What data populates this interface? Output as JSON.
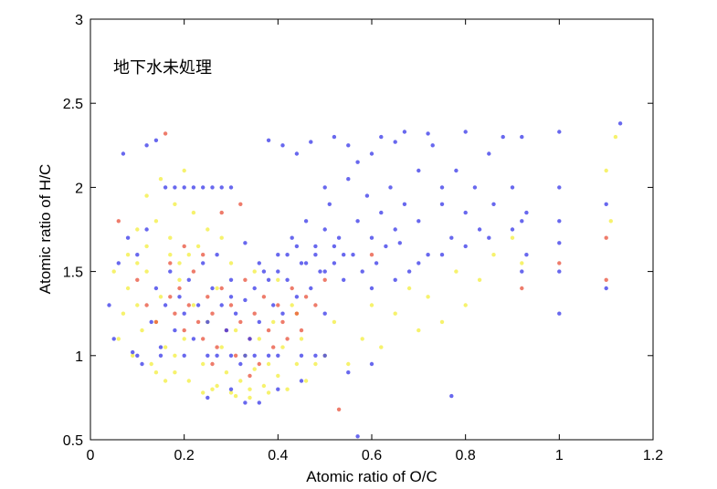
{
  "chart_data": {
    "type": "scatter",
    "annotation": "地下水未処理",
    "xlabel": "Atomic ratio of O/C",
    "ylabel": "Atomic ratio of H/C",
    "xlim": [
      0,
      1.2
    ],
    "ylim": [
      0.5,
      3
    ],
    "xticks": [
      "0",
      "0.2",
      "0.4",
      "0.6",
      "0.8",
      "1",
      "1.2"
    ],
    "yticks": [
      "0.5",
      "1",
      "1.5",
      "2",
      "2.5",
      "3"
    ],
    "grid": false,
    "legend": "none",
    "colors": {
      "blue": "#3535e8",
      "red": "#e8503a",
      "yellow": "#f3ee3c"
    },
    "series": [
      {
        "color": "yellow",
        "points": [
          [
            0.06,
            1.1
          ],
          [
            0.07,
            1.25
          ],
          [
            0.08,
            1.4
          ],
          [
            0.09,
            1.0
          ],
          [
            0.1,
            1.3
          ],
          [
            0.11,
            1.15
          ],
          [
            0.12,
            1.5
          ],
          [
            0.13,
            0.95
          ],
          [
            0.14,
            1.2
          ],
          [
            0.15,
            1.35
          ],
          [
            0.16,
            1.05
          ],
          [
            0.17,
            1.6
          ],
          [
            0.18,
            0.9
          ],
          [
            0.19,
            1.45
          ],
          [
            0.2,
            1.1
          ],
          [
            0.21,
            0.85
          ],
          [
            0.22,
            1.3
          ],
          [
            0.23,
            1.65
          ],
          [
            0.24,
            0.95
          ],
          [
            0.25,
            1.2
          ],
          [
            0.26,
            0.8
          ],
          [
            0.27,
            1.4
          ],
          [
            0.28,
            1.05
          ],
          [
            0.29,
            0.9
          ],
          [
            0.3,
            0.78
          ],
          [
            0.31,
            1.15
          ],
          [
            0.32,
            0.85
          ],
          [
            0.33,
            1.0
          ],
          [
            0.34,
            0.75
          ],
          [
            0.35,
            0.92
          ],
          [
            0.36,
            1.1
          ],
          [
            0.37,
            0.82
          ],
          [
            0.38,
            0.95
          ],
          [
            0.39,
            1.2
          ],
          [
            0.4,
            0.88
          ],
          [
            0.41,
            1.05
          ],
          [
            0.42,
            0.8
          ],
          [
            0.43,
            1.3
          ],
          [
            0.44,
            0.95
          ],
          [
            0.45,
            1.1
          ],
          [
            0.12,
            1.95
          ],
          [
            0.15,
            2.05
          ],
          [
            0.18,
            1.9
          ],
          [
            0.2,
            2.1
          ],
          [
            0.22,
            1.85
          ],
          [
            0.25,
            1.75
          ],
          [
            0.28,
            1.7
          ],
          [
            0.1,
            1.75
          ],
          [
            0.08,
            1.6
          ],
          [
            0.05,
            1.5
          ],
          [
            0.5,
            1.0
          ],
          [
            0.52,
            1.2
          ],
          [
            0.55,
            0.95
          ],
          [
            0.58,
            1.1
          ],
          [
            0.6,
            1.3
          ],
          [
            0.62,
            1.05
          ],
          [
            0.65,
            1.25
          ],
          [
            0.68,
            1.4
          ],
          [
            0.7,
            1.15
          ],
          [
            0.72,
            1.35
          ],
          [
            0.75,
            1.2
          ],
          [
            0.78,
            1.5
          ],
          [
            0.8,
            1.3
          ],
          [
            0.83,
            1.45
          ],
          [
            0.86,
            1.6
          ],
          [
            0.9,
            1.7
          ],
          [
            0.92,
            1.55
          ],
          [
            1.1,
            2.1
          ],
          [
            1.11,
            1.8
          ],
          [
            1.12,
            2.3
          ],
          [
            0.14,
            0.9
          ],
          [
            0.16,
            0.85
          ],
          [
            0.18,
            1.0
          ],
          [
            0.24,
            0.78
          ],
          [
            0.27,
            0.82
          ],
          [
            0.31,
            0.76
          ],
          [
            0.34,
            0.8
          ],
          [
            0.38,
            0.78
          ],
          [
            0.46,
            0.85
          ],
          [
            0.48,
            0.95
          ],
          [
            0.1,
            1.55
          ],
          [
            0.12,
            1.65
          ],
          [
            0.14,
            1.8
          ],
          [
            0.17,
            1.7
          ],
          [
            0.19,
            1.55
          ],
          [
            0.21,
            1.6
          ],
          [
            0.3,
            1.55
          ],
          [
            0.35,
            1.5
          ],
          [
            0.4,
            1.45
          ],
          [
            0.44,
            1.25
          ]
        ]
      },
      {
        "color": "red",
        "points": [
          [
            0.06,
            1.8
          ],
          [
            0.1,
            1.45
          ],
          [
            0.12,
            1.3
          ],
          [
            0.14,
            1.2
          ],
          [
            0.16,
            2.32
          ],
          [
            0.17,
            1.35
          ],
          [
            0.18,
            1.25
          ],
          [
            0.19,
            1.4
          ],
          [
            0.2,
            1.15
          ],
          [
            0.21,
            1.3
          ],
          [
            0.22,
            1.5
          ],
          [
            0.23,
            1.2
          ],
          [
            0.24,
            1.1
          ],
          [
            0.25,
            1.35
          ],
          [
            0.26,
            1.25
          ],
          [
            0.27,
            1.05
          ],
          [
            0.28,
            1.4
          ],
          [
            0.29,
            1.15
          ],
          [
            0.3,
            1.3
          ],
          [
            0.31,
            1.0
          ],
          [
            0.32,
            1.2
          ],
          [
            0.33,
            1.45
          ],
          [
            0.34,
            1.1
          ],
          [
            0.35,
            1.25
          ],
          [
            0.36,
            0.95
          ],
          [
            0.37,
            1.35
          ],
          [
            0.38,
            1.15
          ],
          [
            0.39,
            1.05
          ],
          [
            0.4,
            1.3
          ],
          [
            0.41,
            1.2
          ],
          [
            0.42,
            1.1
          ],
          [
            0.43,
            1.4
          ],
          [
            0.44,
            1.25
          ],
          [
            0.45,
            1.15
          ],
          [
            0.46,
            1.35
          ],
          [
            0.48,
            1.3
          ],
          [
            0.5,
            1.45
          ],
          [
            0.32,
            1.9
          ],
          [
            0.28,
            1.85
          ],
          [
            0.24,
            1.6
          ],
          [
            0.2,
            1.65
          ],
          [
            0.17,
            1.55
          ],
          [
            0.53,
            0.68
          ],
          [
            0.6,
            1.6
          ],
          [
            0.92,
            1.4
          ],
          [
            1.0,
            1.55
          ],
          [
            1.1,
            1.7
          ],
          [
            1.1,
            1.45
          ],
          [
            0.34,
            0.88
          ],
          [
            0.26,
            0.95
          ]
        ]
      },
      {
        "color": "blue",
        "points": [
          [
            0.04,
            1.3
          ],
          [
            0.05,
            1.1
          ],
          [
            0.06,
            1.55
          ],
          [
            0.07,
            2.2
          ],
          [
            0.08,
            1.7
          ],
          [
            0.09,
            1.02
          ],
          [
            0.1,
            1.6
          ],
          [
            0.11,
            0.95
          ],
          [
            0.12,
            1.75
          ],
          [
            0.13,
            1.2
          ],
          [
            0.14,
            1.4
          ],
          [
            0.15,
            1.05
          ],
          [
            0.16,
            1.3
          ],
          [
            0.17,
            1.5
          ],
          [
            0.18,
            1.15
          ],
          [
            0.19,
            1.35
          ],
          [
            0.2,
            1.25
          ],
          [
            0.21,
            1.45
          ],
          [
            0.22,
            1.1
          ],
          [
            0.23,
            1.3
          ],
          [
            0.24,
            1.55
          ],
          [
            0.25,
            1.2
          ],
          [
            0.26,
            1.4
          ],
          [
            0.27,
            1.0
          ],
          [
            0.28,
            1.3
          ],
          [
            0.29,
            1.15
          ],
          [
            0.3,
            1.35
          ],
          [
            0.31,
            1.25
          ],
          [
            0.32,
            0.95
          ],
          [
            0.33,
            1.33
          ],
          [
            0.33,
            1.0
          ],
          [
            0.33,
            1.67
          ],
          [
            0.34,
            1.1
          ],
          [
            0.35,
            1.4
          ],
          [
            0.36,
            1.2
          ],
          [
            0.37,
            1.5
          ],
          [
            0.38,
            1.0
          ],
          [
            0.39,
            1.3
          ],
          [
            0.4,
            1.6
          ],
          [
            0.41,
            1.25
          ],
          [
            0.42,
            1.45
          ],
          [
            0.43,
            1.7
          ],
          [
            0.44,
            1.35
          ],
          [
            0.45,
            1.55
          ],
          [
            0.46,
            1.8
          ],
          [
            0.47,
            1.4
          ],
          [
            0.48,
            1.65
          ],
          [
            0.49,
            1.5
          ],
          [
            0.5,
            1.5
          ],
          [
            0.5,
            2.0
          ],
          [
            0.5,
            1.0
          ],
          [
            0.5,
            1.75
          ],
          [
            0.5,
            1.25
          ],
          [
            0.51,
            1.9
          ],
          [
            0.52,
            1.55
          ],
          [
            0.53,
            1.7
          ],
          [
            0.54,
            1.45
          ],
          [
            0.55,
            2.05
          ],
          [
            0.56,
            1.6
          ],
          [
            0.57,
            1.8
          ],
          [
            0.58,
            1.5
          ],
          [
            0.59,
            1.95
          ],
          [
            0.6,
            1.7
          ],
          [
            0.6,
            2.2
          ],
          [
            0.61,
            1.55
          ],
          [
            0.62,
            1.85
          ],
          [
            0.63,
            1.65
          ],
          [
            0.64,
            2.0
          ],
          [
            0.65,
            1.75
          ],
          [
            0.66,
            1.67
          ],
          [
            0.67,
            1.9
          ],
          [
            0.67,
            2.33
          ],
          [
            0.68,
            1.5
          ],
          [
            0.7,
            2.1
          ],
          [
            0.7,
            1.8
          ],
          [
            0.72,
            1.6
          ],
          [
            0.73,
            2.25
          ],
          [
            0.75,
            1.9
          ],
          [
            0.75,
            2.0
          ],
          [
            0.77,
            1.7
          ],
          [
            0.78,
            2.1
          ],
          [
            0.8,
            1.85
          ],
          [
            0.8,
            2.33
          ],
          [
            0.82,
            2.0
          ],
          [
            0.83,
            1.75
          ],
          [
            0.85,
            2.2
          ],
          [
            0.86,
            1.9
          ],
          [
            0.88,
            2.3
          ],
          [
            0.9,
            2.0
          ],
          [
            0.92,
            2.3
          ],
          [
            0.92,
            1.8
          ],
          [
            1.0,
            2.33
          ],
          [
            1.0,
            2.0
          ],
          [
            1.0,
            1.67
          ],
          [
            1.0,
            1.5
          ],
          [
            1.0,
            1.25
          ],
          [
            1.0,
            1.8
          ],
          [
            1.1,
            1.9
          ],
          [
            1.1,
            1.4
          ],
          [
            1.13,
            2.38
          ],
          [
            0.38,
            2.28
          ],
          [
            0.41,
            2.25
          ],
          [
            0.44,
            2.2
          ],
          [
            0.47,
            2.27
          ],
          [
            0.52,
            2.3
          ],
          [
            0.55,
            2.25
          ],
          [
            0.62,
            2.3
          ],
          [
            0.57,
            2.15
          ],
          [
            0.65,
            2.27
          ],
          [
            0.72,
            2.32
          ],
          [
            0.12,
            2.25
          ],
          [
            0.14,
            2.28
          ],
          [
            0.16,
            2.0
          ],
          [
            0.18,
            2.0
          ],
          [
            0.2,
            2.0
          ],
          [
            0.22,
            2.0
          ],
          [
            0.24,
            2.0
          ],
          [
            0.26,
            2.0
          ],
          [
            0.28,
            2.0
          ],
          [
            0.3,
            2.0
          ],
          [
            0.1,
            1.0
          ],
          [
            0.15,
            1.0
          ],
          [
            0.2,
            1.0
          ],
          [
            0.25,
            1.0
          ],
          [
            0.3,
            1.0
          ],
          [
            0.35,
            1.0
          ],
          [
            0.4,
            1.0
          ],
          [
            0.45,
            1.0
          ],
          [
            0.48,
            1.0
          ],
          [
            0.36,
            0.72
          ],
          [
            0.25,
            0.75
          ],
          [
            0.3,
            0.8
          ],
          [
            0.33,
            0.72
          ],
          [
            0.4,
            0.8
          ],
          [
            0.45,
            0.85
          ],
          [
            0.55,
            0.9
          ],
          [
            0.6,
            0.95
          ],
          [
            0.77,
            0.76
          ],
          [
            0.57,
            0.52
          ],
          [
            0.4,
            1.5
          ],
          [
            0.38,
            1.45
          ],
          [
            0.36,
            1.55
          ],
          [
            0.42,
            1.6
          ],
          [
            0.44,
            1.65
          ],
          [
            0.46,
            1.55
          ],
          [
            0.48,
            1.6
          ],
          [
            0.52,
            1.65
          ],
          [
            0.54,
            1.6
          ],
          [
            0.3,
            1.45
          ],
          [
            0.27,
            1.6
          ],
          [
            0.6,
            1.4
          ],
          [
            0.65,
            1.45
          ],
          [
            0.7,
            1.55
          ],
          [
            0.75,
            1.6
          ],
          [
            0.8,
            1.65
          ],
          [
            0.85,
            1.7
          ],
          [
            0.9,
            1.75
          ],
          [
            0.93,
            1.85
          ],
          [
            0.93,
            1.6
          ],
          [
            0.92,
            1.5
          ]
        ]
      }
    ]
  }
}
